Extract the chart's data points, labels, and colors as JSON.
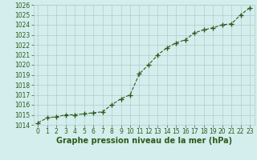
{
  "x": [
    0,
    1,
    2,
    3,
    4,
    5,
    6,
    7,
    8,
    9,
    10,
    11,
    12,
    13,
    14,
    15,
    16,
    17,
    18,
    19,
    20,
    21,
    22,
    23
  ],
  "y": [
    1014.2,
    1014.7,
    1014.8,
    1015.0,
    1015.0,
    1015.1,
    1015.2,
    1015.3,
    1016.0,
    1016.6,
    1017.0,
    1019.1,
    1020.0,
    1021.0,
    1021.7,
    1022.2,
    1022.5,
    1023.2,
    1023.5,
    1023.7,
    1024.0,
    1024.1,
    1025.0,
    1025.7
  ],
  "ylim": [
    1014,
    1026
  ],
  "yticks": [
    1014,
    1015,
    1016,
    1017,
    1018,
    1019,
    1020,
    1021,
    1022,
    1023,
    1024,
    1025,
    1026
  ],
  "xlim": [
    -0.5,
    23.5
  ],
  "xticks": [
    0,
    1,
    2,
    3,
    4,
    5,
    6,
    7,
    8,
    9,
    10,
    11,
    12,
    13,
    14,
    15,
    16,
    17,
    18,
    19,
    20,
    21,
    22,
    23
  ],
  "xlabel": "Graphe pression niveau de la mer (hPa)",
  "line_color": "#2d5a1b",
  "marker_color": "#2d5a1b",
  "bg_plot": "#d4eeed",
  "bg_fig": "#d4eeed",
  "grid_color": "#b0cccc",
  "tick_label_color": "#2d5a1b",
  "xlabel_color": "#2d5a1b",
  "xlabel_fontsize": 7.0,
  "tick_fontsize": 5.5,
  "marker_size": 4.0,
  "line_width": 0.8
}
